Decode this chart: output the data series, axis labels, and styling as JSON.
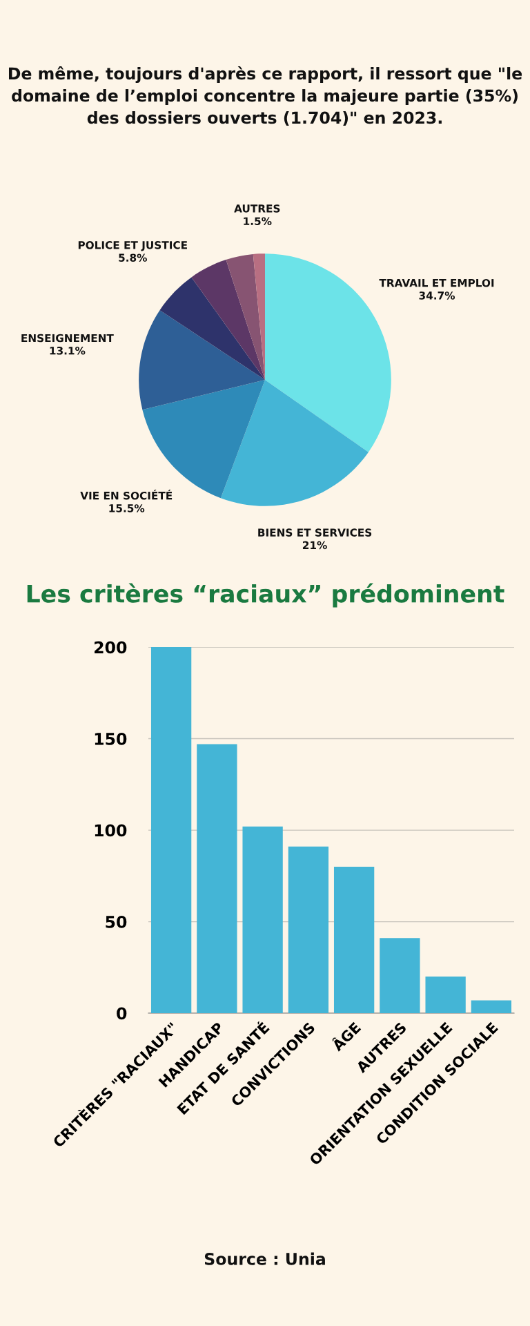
{
  "chart_data": [
    {
      "type": "pie",
      "title": "De même, toujours d'après ce rapport, il ressort que \"le domaine de l’emploi concentre la majeure partie (35%) des dossiers ouverts (1.704)\" en 2023.",
      "categories": [
        "TRAVAIL ET EMPLOI",
        "BIENS ET SERVICES",
        "VIE EN SOCIÉTÉ",
        "ENSEIGNEMENT",
        "POLICE ET JUSTICE",
        null,
        null,
        "AUTRES"
      ],
      "values": [
        34.7,
        21,
        15.5,
        13.1,
        5.8,
        4.9,
        3.5,
        1.5
      ],
      "value_labels": [
        "34.7%",
        "21%",
        "15.5%",
        "13.1%",
        "5.8%",
        null,
        null,
        "1.5%"
      ],
      "colors": [
        "#6ce3e8",
        "#44b5d6",
        "#2e8ab8",
        "#2e5f96",
        "#2e336b",
        "#5c3766",
        "#875472",
        "#b86f82"
      ]
    },
    {
      "type": "bar",
      "title": "Les critères “raciaux” prédominent",
      "categories": [
        "CRITÈRES \"RACIAUX\"",
        "HANDICAP",
        "ETAT DE SANTÉ",
        "CONVICTIONS",
        "ÂGE",
        "AUTRES",
        "ORIENTATION SEXUELLE",
        "CONDITION SOCIALE"
      ],
      "values": [
        200,
        147,
        102,
        91,
        80,
        41,
        20,
        7
      ],
      "color": "#44b5d6",
      "ylim": [
        0,
        200
      ],
      "yticks": [
        0,
        50,
        100,
        150,
        200
      ],
      "grid": "y",
      "annotations": [
        "Source : Unia"
      ]
    }
  ]
}
